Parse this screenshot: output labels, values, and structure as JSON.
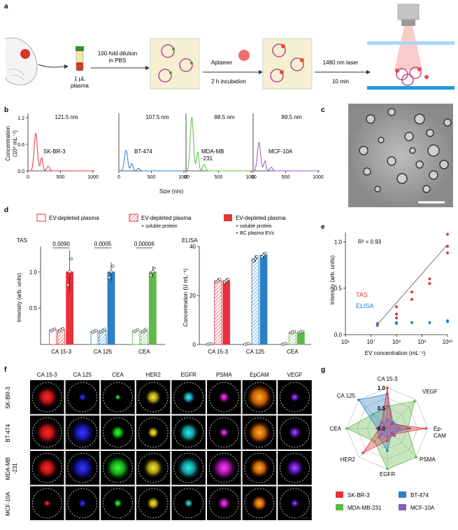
{
  "panels": {
    "a": {
      "label": "a",
      "plasma_volume": "1 μL",
      "plasma": "plasma",
      "dilution": "100-fold dilution",
      "dilution2": "in PBS",
      "aptamer": "Aptamer",
      "incubation": "2 h incubation",
      "laser": "1480 nm laser",
      "laser_time": "10 min"
    },
    "b": {
      "label": "b",
      "ylabel": "Concentration",
      "ylabel2": "(10⁹ mL⁻¹)",
      "xlabel": "Size (nm)",
      "yticks": [
        "0.0",
        "0.6",
        "1.2"
      ],
      "xticks": [
        "0",
        "500",
        "1000"
      ],
      "samples": [
        {
          "name": "SK-BR-3",
          "peak": "121.5 nm",
          "color": "#e8323a"
        },
        {
          "name": "BT-474",
          "peak": "107.5 nm",
          "color": "#2a7fc6"
        },
        {
          "name": "MDA-MB",
          "name2": "-231",
          "peak": "88.5 nm",
          "color": "#5fb84a"
        },
        {
          "name": "MCF-10A",
          "peak": "89.5 nm",
          "color": "#8a5cc0"
        }
      ]
    },
    "c": {
      "label": "c"
    },
    "d": {
      "label": "d",
      "legend": [
        {
          "text": "EV-depleted plasma"
        },
        {
          "text": "EV-depleted plasma",
          "text2": "+ soluble protein"
        },
        {
          "text": "EV-depleted plasma",
          "text2": "+ soluble protein",
          "text3": "+ BC plasma EVs"
        }
      ],
      "tas_title": "TAS",
      "elisa_title": "ELISA",
      "tas_ylabel": "Intensity (arb. units)",
      "elisa_ylabel": "Concentration (U mL⁻¹)",
      "tas_yticks": [
        "0.5",
        "1.0"
      ],
      "elisa_yticks": [
        "0",
        "20",
        "40"
      ],
      "categories": [
        "CA 15-3",
        "CA 125",
        "CEA"
      ],
      "pvalues": [
        "0.0090",
        "0.0005",
        "0.00006"
      ]
    },
    "e": {
      "label": "e",
      "r2": "R² = 0.93",
      "tas": "TAS",
      "elisa": "ELISA",
      "xlabel": "EV concentration (mL⁻¹)",
      "ylabel": "Intensity (arb. units)",
      "xticks": [
        "10⁶",
        "10⁷",
        "10⁸",
        "10⁹",
        "10¹⁰"
      ],
      "yticks": [
        "0.0",
        "0.5",
        "1.0"
      ]
    },
    "f": {
      "label": "f",
      "markers": [
        "CA 15-3",
        "CA 125",
        "CEA",
        "HER2",
        "EGFR",
        "PSMA",
        "EpCAM",
        "VEGF"
      ],
      "rows": [
        "SK-BR-3",
        "BT-474",
        "MDA-MB",
        "MCF-10A"
      ],
      "row3b": "-231"
    },
    "g": {
      "label": "g",
      "axes": [
        "CA 15-3",
        "VEGF",
        "Ep-",
        "PSMA",
        "EGFR",
        "HER2",
        "CEA",
        "CA 125"
      ],
      "axis_ep2": "CAM",
      "ticks": [
        "0.0",
        "0.5",
        "1.0"
      ],
      "legend": [
        "SK-BR-3",
        "BT-474",
        "MDA-MB-231",
        "MCF-10A"
      ]
    }
  },
  "colors": {
    "red": "#e8323a",
    "blue": "#2a7fc6",
    "green": "#5fb84a",
    "purple": "#8a5cc0"
  },
  "chart_data": [
    {
      "type": "bar",
      "title": "TAS",
      "ylabel": "Intensity (arb. units)",
      "categories": [
        "CA 15-3",
        "CA 125",
        "CEA"
      ],
      "series": [
        {
          "name": "EV-depleted plasma",
          "values": [
            0.2,
            0.18,
            0.19
          ]
        },
        {
          "name": "EV-depleted plasma + soluble protein",
          "values": [
            0.2,
            0.19,
            0.19
          ]
        },
        {
          "name": "EV-depleted plasma + soluble protein + BC plasma EVs",
          "values": [
            1.0,
            1.0,
            1.0
          ]
        }
      ],
      "ylim": [
        0,
        1.35
      ]
    },
    {
      "type": "bar",
      "title": "ELISA",
      "ylabel": "Concentration (U mL⁻¹)",
      "categories": [
        "CA 15-3",
        "CA 125",
        "CEA"
      ],
      "series": [
        {
          "name": "EV-depleted plasma",
          "values": [
            0.2,
            0.2,
            0.2
          ]
        },
        {
          "name": "EV-depleted plasma + soluble protein",
          "values": [
            26,
            35,
            5
          ]
        },
        {
          "name": "EV-depleted plasma + soluble protein + BC plasma EVs",
          "values": [
            26,
            36.5,
            5.1
          ]
        }
      ],
      "ylim": [
        0,
        40
      ]
    },
    {
      "type": "scatter",
      "xlabel": "EV concentration (mL⁻¹)",
      "ylabel": "Intensity (arb. units)",
      "xscale": "log",
      "xlim": [
        1000000,
        10000000000
      ],
      "ylim": [
        0,
        1.1
      ],
      "series": [
        {
          "name": "TAS",
          "x": [
            18000000.0,
            18000000.0,
            100000000.0,
            100000000.0,
            100000000.0,
            400000000.0,
            400000000.0,
            2000000000.0,
            2000000000.0,
            10000000000.0,
            10000000000.0,
            10000000000.0
          ],
          "y": [
            0.12,
            0.1,
            0.3,
            0.22,
            0.18,
            0.46,
            0.38,
            0.6,
            0.55,
            1.08,
            0.95,
            0.88
          ]
        },
        {
          "name": "ELISA",
          "x": [
            18000000.0,
            18000000.0,
            100000000.0,
            100000000.0,
            400000000.0,
            2000000000.0,
            10000000000.0,
            10000000000.0
          ],
          "y": [
            0.11,
            0.12,
            0.13,
            0.12,
            0.13,
            0.13,
            0.15,
            0.14
          ]
        }
      ],
      "annotation": "R² = 0.93"
    }
  ]
}
